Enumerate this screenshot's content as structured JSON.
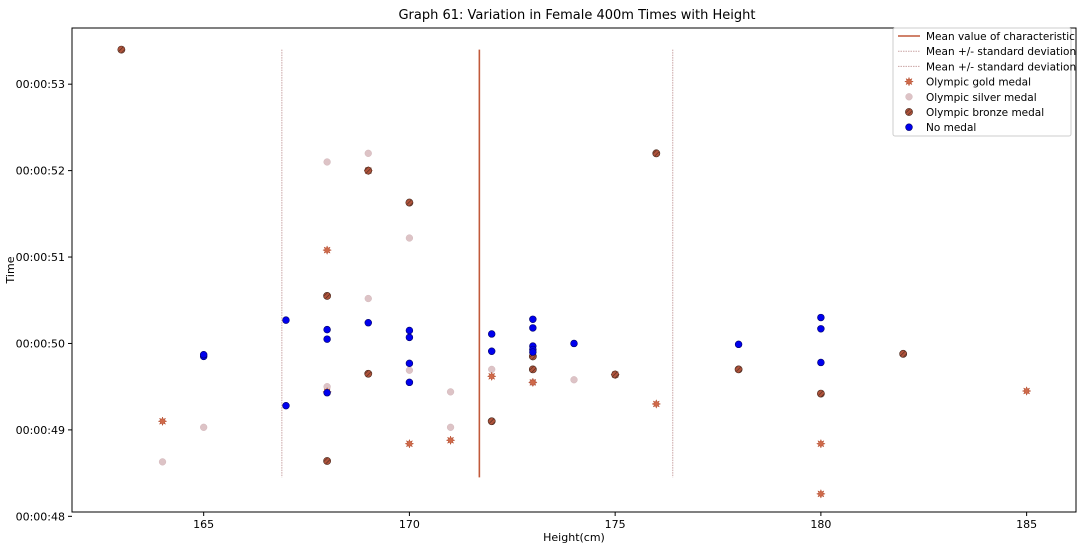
{
  "chart_data": {
    "type": "scatter",
    "title": "Graph 61: Variation in Female 400m Times with Height",
    "xlabel": "Height(cm)",
    "ylabel": "Time",
    "xlim": [
      161.8,
      186.2
    ],
    "ylim": [
      48.05,
      53.65
    ],
    "x_ticks": [
      165,
      170,
      175,
      180,
      185
    ],
    "y_ticks": [
      {
        "value": 48,
        "label": "00:00:48"
      },
      {
        "value": 49,
        "label": "00:00:49"
      },
      {
        "value": 50,
        "label": "00:00:50"
      },
      {
        "value": 51,
        "label": "00:00:51"
      },
      {
        "value": 52,
        "label": "00:00:52"
      },
      {
        "value": 53,
        "label": "00:00:53"
      }
    ],
    "grid": false,
    "legend_position": "top-right",
    "mean_line": {
      "name": "Mean value of characteristic",
      "x": 171.7,
      "y_range": [
        48.45,
        53.4
      ],
      "color": "#c1593a"
    },
    "sd_lines": [
      {
        "name": "Mean +/- standard deviation",
        "x": 166.9,
        "y_range": [
          48.45,
          53.4
        ],
        "color": "#c9a3a3"
      },
      {
        "name": "Mean +/- standard deviation",
        "x": 176.4,
        "y_range": [
          48.45,
          53.4
        ],
        "color": "#c9a3a3"
      }
    ],
    "series": [
      {
        "name": "Olympic gold medal",
        "color": "#d06a4a",
        "marker": "star",
        "points": [
          [
            164,
            49.1
          ],
          [
            168,
            51.08
          ],
          [
            168,
            49.44
          ],
          [
            169,
            52.0
          ],
          [
            170,
            48.84
          ],
          [
            171,
            48.88
          ],
          [
            172,
            49.62
          ],
          [
            173,
            49.55
          ],
          [
            175,
            49.64
          ],
          [
            176,
            49.3
          ],
          [
            180,
            48.84
          ],
          [
            180,
            48.26
          ],
          [
            185,
            49.45
          ]
        ]
      },
      {
        "name": "Olympic silver medal",
        "color": "#ddc3c6",
        "marker": "circle",
        "points": [
          [
            164,
            48.63
          ],
          [
            165,
            49.03
          ],
          [
            168,
            52.1
          ],
          [
            168,
            49.5
          ],
          [
            169,
            52.2
          ],
          [
            169,
            50.52
          ],
          [
            170,
            51.22
          ],
          [
            170,
            49.69
          ],
          [
            171,
            49.44
          ],
          [
            171,
            49.03
          ],
          [
            172,
            49.7
          ],
          [
            173,
            49.55
          ],
          [
            174,
            49.58
          ]
        ]
      },
      {
        "name": "Olympic bronze medal",
        "color": "#b0533b",
        "marker": "hatched",
        "points": [
          [
            163,
            53.4
          ],
          [
            168,
            50.55
          ],
          [
            168,
            48.64
          ],
          [
            169,
            49.65
          ],
          [
            169,
            52.0
          ],
          [
            170,
            51.63
          ],
          [
            172,
            49.1
          ],
          [
            173,
            49.7
          ],
          [
            173,
            49.85
          ],
          [
            175,
            49.64
          ],
          [
            176,
            52.2
          ],
          [
            178,
            49.7
          ],
          [
            180,
            49.42
          ],
          [
            182,
            49.88
          ]
        ]
      },
      {
        "name": "No medal",
        "color": "#0000ee",
        "marker": "circle",
        "points": [
          [
            165,
            49.85
          ],
          [
            165,
            49.87
          ],
          [
            167,
            50.27
          ],
          [
            167,
            49.28
          ],
          [
            168,
            50.16
          ],
          [
            168,
            50.05
          ],
          [
            168,
            49.43
          ],
          [
            169,
            50.24
          ],
          [
            170,
            50.15
          ],
          [
            170,
            50.07
          ],
          [
            170,
            49.77
          ],
          [
            170,
            49.55
          ],
          [
            172,
            50.11
          ],
          [
            172,
            49.91
          ],
          [
            173,
            50.28
          ],
          [
            173,
            50.18
          ],
          [
            173,
            49.97
          ],
          [
            173,
            49.93
          ],
          [
            173,
            49.9
          ],
          [
            174,
            50.0
          ],
          [
            178,
            49.99
          ],
          [
            180,
            50.3
          ],
          [
            180,
            50.17
          ],
          [
            180,
            49.78
          ]
        ]
      }
    ]
  }
}
